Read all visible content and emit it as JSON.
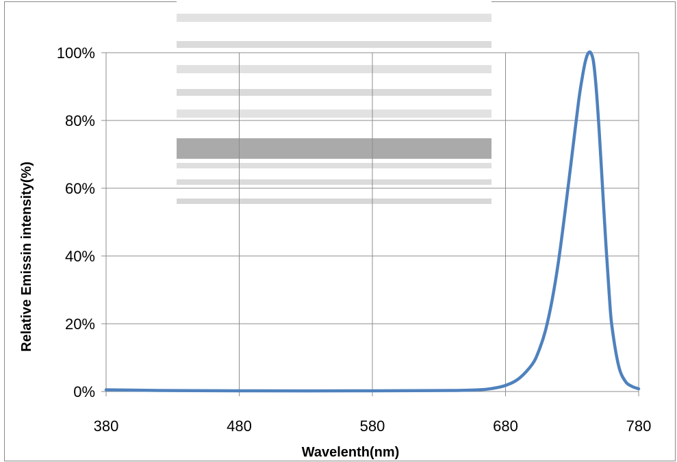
{
  "chart_data": {
    "type": "line",
    "title": "",
    "xlabel": "Wavelenth(nm)",
    "ylabel": "Relative Emissin intensity(%)",
    "xlim": [
      380,
      780
    ],
    "ylim": [
      0,
      100
    ],
    "x_ticks": [
      380,
      480,
      580,
      680,
      780
    ],
    "x_tick_labels": [
      "380",
      "480",
      "580",
      "680",
      "780"
    ],
    "y_ticks": [
      0,
      20,
      40,
      60,
      80,
      100
    ],
    "y_tick_labels": [
      "0%",
      "20%",
      "40%",
      "60%",
      "80%",
      "100%"
    ],
    "grid": true,
    "legend": "none",
    "series": [
      {
        "color": "#4f81bd",
        "x": [
          380,
          420,
          480,
          580,
          640,
          660,
          670,
          680,
          690,
          700,
          705,
          710,
          715,
          720,
          725,
          730,
          735,
          738,
          740,
          742,
          744,
          746,
          748,
          750,
          752,
          755,
          758,
          760,
          765,
          770,
          775,
          780
        ],
        "y": [
          0.5,
          0.3,
          0.2,
          0.2,
          0.3,
          0.5,
          0.9,
          1.8,
          3.8,
          8.0,
          12,
          18,
          27,
          39,
          54,
          70,
          86,
          93.5,
          97.5,
          99.8,
          100,
          97.5,
          90,
          79,
          66,
          46,
          28,
          19,
          7.5,
          3,
          1.5,
          0.8
        ]
      }
    ]
  }
}
